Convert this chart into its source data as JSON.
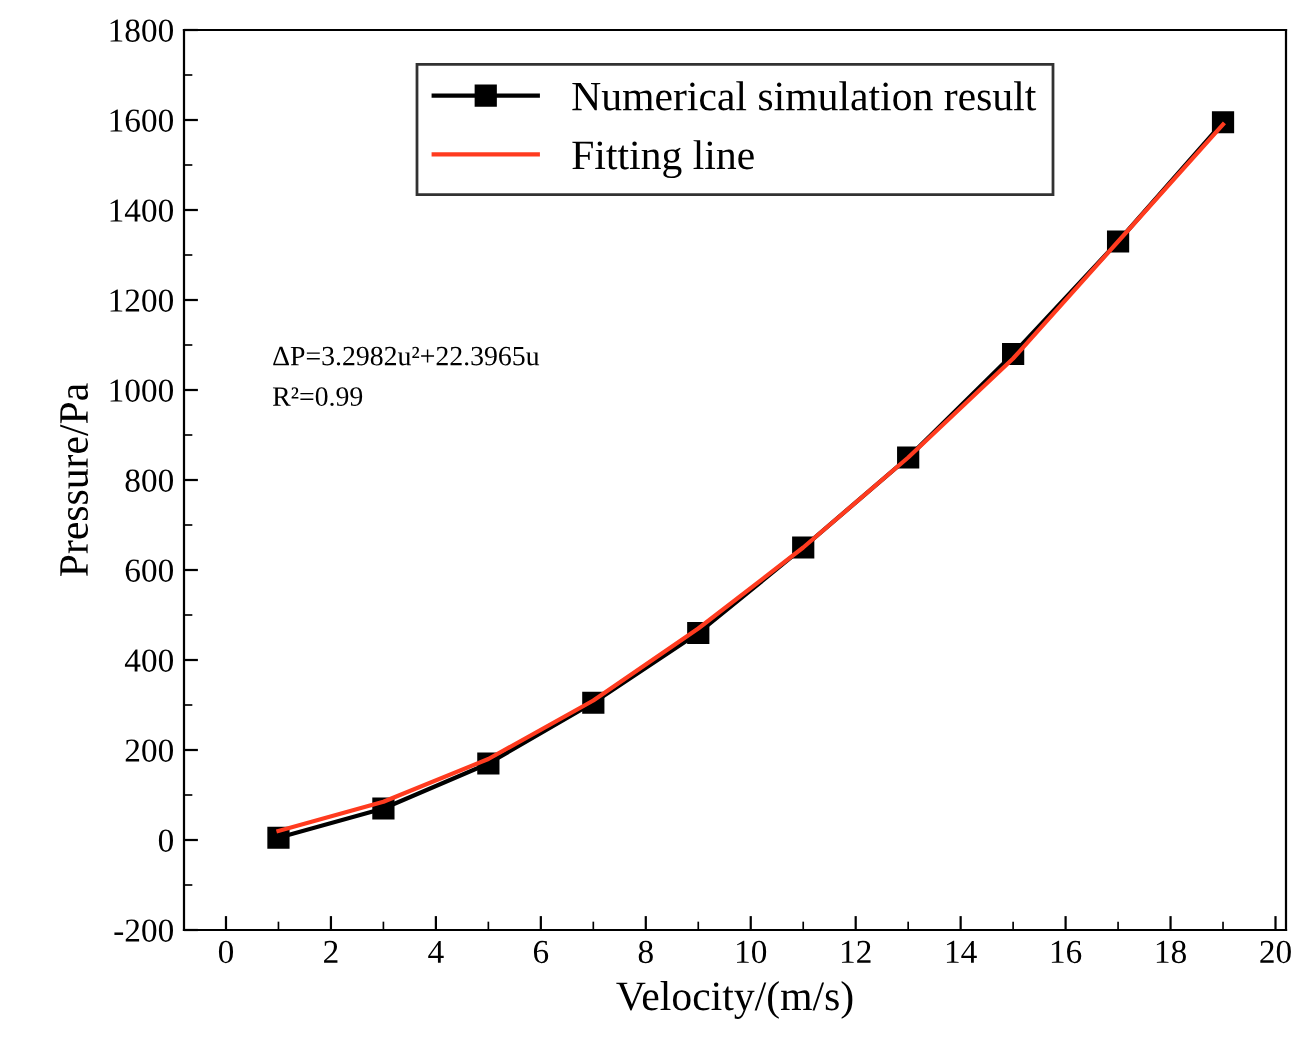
{
  "chart_data": {
    "type": "line",
    "xlabel": "Velocity/(m/s)",
    "ylabel": "Pressure/Pa",
    "x": [
      1,
      3,
      5,
      7,
      9,
      11,
      13,
      15,
      17,
      19
    ],
    "series": [
      {
        "name": "Numerical simulation result",
        "color": "#000000",
        "marker": "square",
        "values": [
          5,
          70,
          170,
          305,
          460,
          650,
          850,
          1080,
          1330,
          1595
        ]
      },
      {
        "name": "Fitting line",
        "color": "#ff3b1f",
        "marker": "none",
        "values": [
          20,
          85,
          180,
          310,
          470,
          650,
          850,
          1070,
          1330,
          1590
        ]
      }
    ],
    "xlim": [
      -0.8,
      20.2
    ],
    "xticks": [
      0,
      2,
      4,
      6,
      8,
      10,
      12,
      14,
      16,
      18,
      20
    ],
    "ylim": [
      -200,
      1800
    ],
    "yticks": [
      -200,
      0,
      200,
      400,
      600,
      800,
      1000,
      1200,
      1400,
      1600,
      1800
    ],
    "grid": false,
    "legend": "top",
    "annotations": [
      "ΔP=3.2982u²+22.3965u",
      "R²=0.99"
    ]
  }
}
